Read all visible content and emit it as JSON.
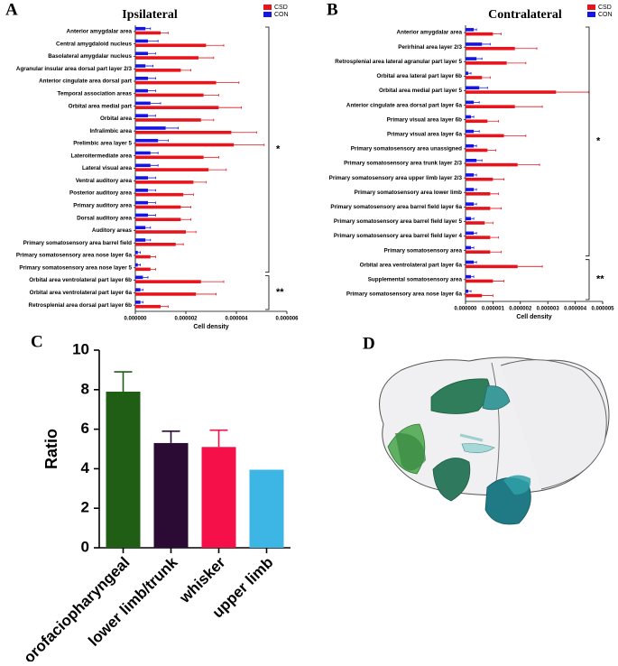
{
  "chart_data": [
    {
      "type": "barh",
      "panel_label": "A",
      "title": "Ipsilateral",
      "xlabel": "Cell density",
      "categories": [
        "Anterior amygdalar area",
        "Central amygdaloid nucleus",
        "Basolateral amygdalar nucleus",
        "Agranular insular area dorsal part layer 2/3",
        "Anterior cingulate area dorsal part",
        "Temporal association areas",
        "Orbital area medial part",
        "Orbital area",
        "Infralimbic area",
        "Prelimbic area layer 5",
        "Lateroitermediate area",
        "Lateral visual area",
        "Ventral auditory area",
        "Posterior auditory area",
        "Primary auditory area",
        "Dorsal auditory area",
        "Auditory areas",
        "Primary somatosensory area barrel field",
        "Primary somatosensory area nose layer 6a",
        "Primary somatosensory area nose layer 5",
        "Orbital area ventrolateral part layer 6b",
        "Orbital area ventrolateral part layer 6a",
        "Retrosplenial area dorsal part layer 6b"
      ],
      "series": [
        {
          "name": "CSD",
          "color": "#e8141c",
          "values": [
            1e-06,
            2.8e-06,
            2.5e-06,
            1.8e-06,
            3.2e-06,
            2.7e-06,
            3.3e-06,
            2.6e-06,
            3.8e-06,
            3.9e-06,
            2.7e-06,
            2.9e-06,
            2.3e-06,
            1.9e-06,
            1.8e-06,
            1.8e-06,
            2e-06,
            1.6e-06,
            6e-07,
            6e-07,
            2.6e-06,
            2.4e-06,
            1e-06
          ],
          "errors": [
            3e-07,
            7e-07,
            6e-07,
            4e-07,
            9e-07,
            6e-07,
            9e-07,
            5e-07,
            1e-06,
            1.2e-06,
            6e-07,
            7e-07,
            5e-07,
            4e-07,
            4e-07,
            4e-07,
            4e-07,
            3e-07,
            2e-07,
            2e-07,
            9e-07,
            8e-07,
            3e-07
          ]
        },
        {
          "name": "CON",
          "color": "#1414e6",
          "values": [
            4e-07,
            5e-07,
            5e-07,
            4e-07,
            5e-07,
            5e-07,
            6e-07,
            5e-07,
            1.2e-06,
            9e-07,
            6e-07,
            6e-07,
            5e-07,
            5e-07,
            5e-07,
            5e-07,
            4e-07,
            4e-07,
            1e-07,
            1e-07,
            3e-07,
            2e-07,
            2e-07
          ],
          "errors": [
            2e-07,
            4e-07,
            3e-07,
            3e-07,
            3e-07,
            3e-07,
            4e-07,
            3e-07,
            5e-07,
            4e-07,
            3e-07,
            3e-07,
            3e-07,
            3e-07,
            3e-07,
            3e-07,
            2e-07,
            2e-07,
            1e-07,
            1e-07,
            2e-07,
            1e-07,
            1e-07
          ]
        }
      ],
      "xlim": [
        0,
        6e-06
      ],
      "xticks": [
        {
          "value": 0,
          "label": "0.000000"
        },
        {
          "value": 2e-06,
          "label": "0.000002"
        },
        {
          "value": 4e-06,
          "label": "0.000004"
        },
        {
          "value": 6e-06,
          "label": "0.000006"
        }
      ],
      "annotations": [
        "*",
        "**"
      ]
    },
    {
      "type": "barh",
      "panel_label": "B",
      "title": "Contralateral",
      "xlabel": "Cell density",
      "categories": [
        "Anterior amygdalar area",
        "Perirhinal area layer 2/3",
        "Retrosplenial area lateral agranular part layer 5",
        "Orbital area lateral part layer 6b",
        "Orbital area medial part layer 5",
        "Anterior cingulate area dorsal part layer 6a",
        "Primary visual area layer 6b",
        "Primary visual area layer 6a",
        "Primary somatosensory area unassigned",
        "Primary somatosensory area trunk layer 2/3",
        "Primary somatosensory area upper limb layer 2/3",
        "Primary somatosensory area lower limb",
        "Primary somatosensory area barrel field layer 6a",
        "Primary somatosensory area barrel field layer 5",
        "Primary somatosensory area barrel field layer 4",
        "Primary somatosensory area",
        "Orbital area ventrolateral part layer 6a",
        "Supplemental somatosensory area",
        "Primary somatosensory area nose layer 6a"
      ],
      "series": [
        {
          "name": "CSD",
          "color": "#e8141c",
          "values": [
            1e-06,
            1.8e-06,
            1.5e-06,
            6e-07,
            3.3e-06,
            1.8e-06,
            8e-07,
            1.4e-06,
            8e-07,
            1.9e-06,
            1e-06,
            9e-07,
            9e-07,
            7e-07,
            9e-07,
            9e-07,
            1.9e-06,
            1e-06,
            6e-07
          ],
          "errors": [
            3e-07,
            8e-07,
            7e-07,
            3e-07,
            1.2e-06,
            1e-06,
            4e-07,
            8e-07,
            3e-07,
            8e-07,
            4e-07,
            3e-07,
            4e-07,
            3e-07,
            3e-07,
            4e-07,
            9e-07,
            4e-07,
            4e-07
          ]
        },
        {
          "name": "CON",
          "color": "#1414e6",
          "values": [
            3e-07,
            6e-07,
            4e-07,
            1e-07,
            5e-07,
            3e-07,
            2e-07,
            3e-07,
            3e-07,
            4e-07,
            3e-07,
            3e-07,
            3e-07,
            2e-07,
            3e-07,
            2e-07,
            3e-07,
            2e-07,
            1e-07
          ],
          "errors": [
            1e-07,
            3e-07,
            2e-07,
            1e-07,
            3e-07,
            2e-07,
            1e-07,
            2e-07,
            1e-07,
            2e-07,
            1e-07,
            1e-07,
            1e-07,
            1e-07,
            1e-07,
            1e-07,
            1e-07,
            1e-07,
            1e-07
          ]
        }
      ],
      "xlim": [
        0,
        5e-06
      ],
      "xticks": [
        {
          "value": 0,
          "label": "0.000000"
        },
        {
          "value": 1e-06,
          "label": "0.000001"
        },
        {
          "value": 2e-06,
          "label": "0.000002"
        },
        {
          "value": 3e-06,
          "label": "0.000003"
        },
        {
          "value": 4e-06,
          "label": "0.000004"
        },
        {
          "value": 5e-06,
          "label": "0.000005"
        }
      ],
      "annotations": [
        "*",
        "**"
      ]
    },
    {
      "type": "bar",
      "panel_label": "C",
      "ylabel": "Ratio",
      "categories": [
        "orofaciopharyngeal",
        "lower limb/trunk",
        "whisker",
        "upper limb"
      ],
      "values": [
        7.9,
        5.3,
        5.1,
        3.95
      ],
      "errors": [
        1.0,
        0.6,
        0.85,
        null
      ],
      "colors": [
        "#1f5e14",
        "#2b0a33",
        "#f5104a",
        "#3db5e5"
      ],
      "ylim": [
        0,
        10
      ],
      "yticks": [
        0,
        2,
        4,
        6,
        8,
        10
      ]
    }
  ],
  "image_panel": {
    "panel_label": "D"
  }
}
